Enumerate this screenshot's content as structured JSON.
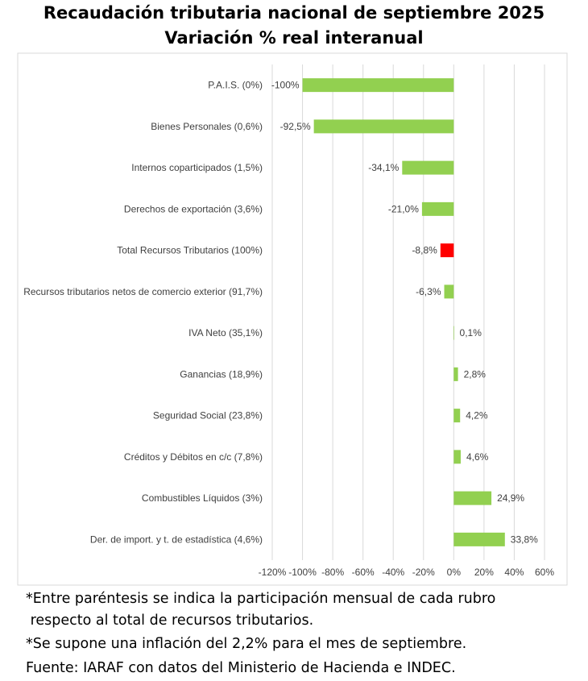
{
  "title": "Recaudación tributaria nacional de septiembre 2025",
  "subtitle": "Variación % real interanual",
  "chart_data": {
    "type": "bar",
    "orientation": "horizontal",
    "categories": [
      "P.A.I.S. (0%)",
      "Bienes Personales (0,6%)",
      "Internos coparticipados (1,5%)",
      "Derechos de exportación (3,6%)",
      "Total Recursos Tributarios (100%)",
      "Recursos tributarios netos de comercio exterior (91,7%)",
      "IVA Neto (35,1%)",
      "Ganancias (18,9%)",
      "Seguridad Social (23,8%)",
      "Créditos y Débitos en c/c (7,8%)",
      "Combustibles Líquidos (3%)",
      "Der. de import. y t. de estadística (4,6%)"
    ],
    "values": [
      -100,
      -92.5,
      -34.1,
      -21.0,
      -8.8,
      -6.3,
      0.1,
      2.8,
      4.2,
      4.6,
      24.9,
      33.8
    ],
    "data_labels": [
      "-100%",
      "-92,5%",
      "-34,1%",
      "-21,0%",
      "-8,8%",
      "-6,3%",
      "0,1%",
      "2,8%",
      "4,2%",
      "4,6%",
      "24,9%",
      "33,8%"
    ],
    "bar_colors": [
      "#92d050",
      "#92d050",
      "#92d050",
      "#92d050",
      "#ff0000",
      "#92d050",
      "#92d050",
      "#92d050",
      "#92d050",
      "#92d050",
      "#92d050",
      "#92d050"
    ],
    "xlim": [
      -120,
      60
    ],
    "xticks": [
      -120,
      -100,
      -80,
      -60,
      -40,
      -20,
      0,
      20,
      40,
      60
    ],
    "xtick_labels": [
      "-120%",
      "-100%",
      "-80%",
      "-60%",
      "-40%",
      "-20%",
      "0%",
      "20%",
      "40%",
      "60%"
    ],
    "grid": true,
    "legend": "none",
    "xlabel": "",
    "ylabel": ""
  },
  "footnotes": [
    "*Entre paréntesis se indica la participación mensual de cada rubro",
    " respecto al total de recursos tributarios.",
    "*Se supone una inflación del 2,2% para el mes de septiembre.",
    "Fuente: IARAF con datos del Ministerio de Hacienda e INDEC."
  ]
}
